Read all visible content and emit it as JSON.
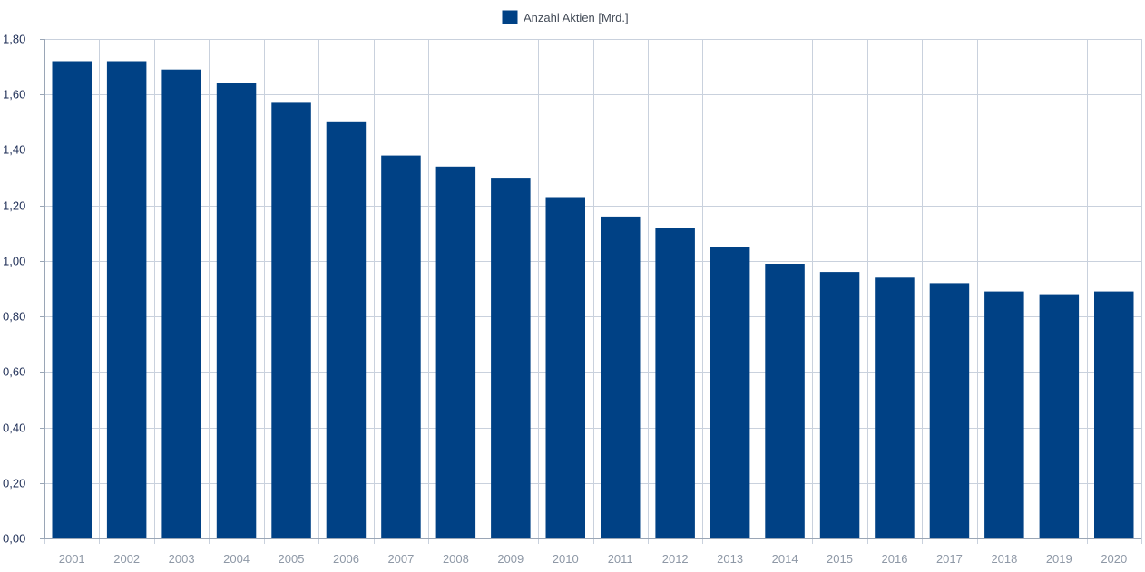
{
  "chart_data": {
    "type": "bar",
    "title": "",
    "xlabel": "",
    "ylabel": "",
    "categories": [
      "2001",
      "2002",
      "2003",
      "2004",
      "2005",
      "2006",
      "2007",
      "2008",
      "2009",
      "2010",
      "2011",
      "2012",
      "2013",
      "2014",
      "2015",
      "2016",
      "2017",
      "2018",
      "2019",
      "2020"
    ],
    "series": [
      {
        "name": "Anzahl Aktien [Mrd.]",
        "color": "#004185",
        "values": [
          1.72,
          1.72,
          1.69,
          1.64,
          1.57,
          1.5,
          1.38,
          1.34,
          1.3,
          1.23,
          1.16,
          1.12,
          1.05,
          0.99,
          0.96,
          0.94,
          0.92,
          0.89,
          0.88,
          0.89
        ]
      }
    ],
    "ylim": [
      0,
      1.8
    ],
    "y_ticks": [
      "0,00",
      "0,20",
      "0,40",
      "0,60",
      "0,80",
      "1,00",
      "1,20",
      "1,40",
      "1,60",
      "1,80"
    ],
    "grid": true,
    "legend_position": "top-center"
  }
}
